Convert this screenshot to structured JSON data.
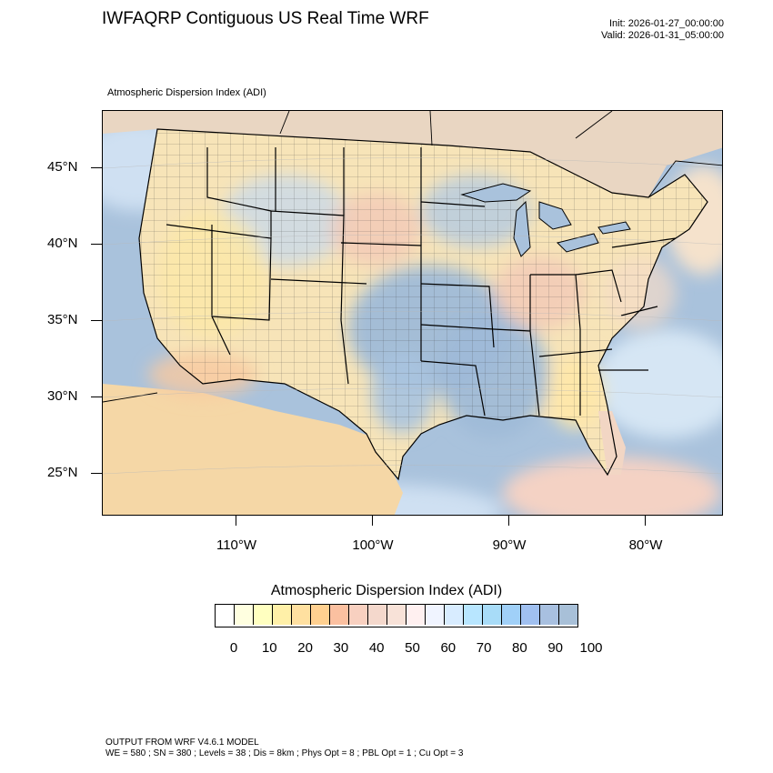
{
  "header": {
    "title": "IWFAQRP Contiguous US Real Time WRF",
    "init": "Init: 2026-01-27_00:00:00",
    "valid": "Valid: 2026-01-31_05:00:00"
  },
  "map": {
    "subtitle": "Atmospheric Dispersion Index   (ADI)",
    "lat_labels": [
      "45°N",
      "40°N",
      "35°N",
      "30°N",
      "25°N"
    ],
    "lon_labels": [
      "110°W",
      "100°W",
      "90°W",
      "80°W"
    ],
    "ocean_color": "#a9c2dc"
  },
  "colorbar": {
    "title": "Atmospheric Dispersion Index  (ADI)",
    "tick_labels": [
      "0",
      "10",
      "20",
      "30",
      "40",
      "50",
      "60",
      "70",
      "80",
      "90",
      "100"
    ],
    "colors": [
      "#ffffff",
      "#ffffe0",
      "#ffffc0",
      "#fff0a8",
      "#ffe0a0",
      "#ffd090",
      "#fbc0a0",
      "#f8d0c0",
      "#f4d8cc",
      "#f8e2d8",
      "#fff0f0",
      "#f0f4ff",
      "#d8ecff",
      "#b8e6ff",
      "#a8dcf8",
      "#a0d0f8",
      "#a0c0f0",
      "#a8c0e0",
      "#a8c0d8"
    ]
  },
  "footer": {
    "line1": "OUTPUT FROM WRF V4.6.1 MODEL",
    "line2": "WE = 580 ; SN = 380 ; Levels = 38 ; Dis = 8km ; Phys Opt = 8 ; PBL Opt = 1 ; Cu Opt = 3"
  }
}
